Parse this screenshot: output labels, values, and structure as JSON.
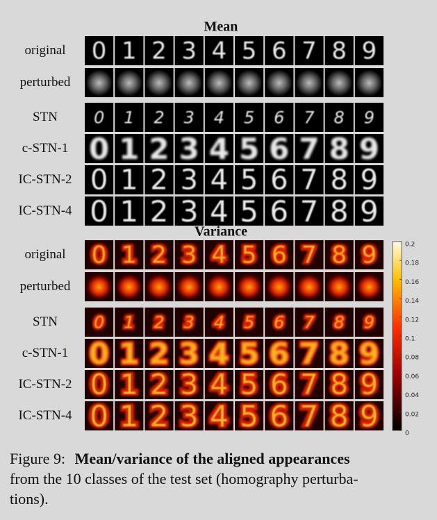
{
  "figure": {
    "mean": {
      "title": "Mean",
      "rows": [
        "original",
        "perturbed",
        "STN",
        "c-STN-1",
        "IC-STN-2",
        "IC-STN-4"
      ]
    },
    "variance": {
      "title": "Variance",
      "rows": [
        "original",
        "perturbed",
        "STN",
        "c-STN-1",
        "IC-STN-2",
        "IC-STN-4"
      ]
    },
    "digits": [
      "0",
      "1",
      "2",
      "3",
      "4",
      "5",
      "6",
      "7",
      "8",
      "9"
    ],
    "colorbar": {
      "lim": [
        0,
        0.2
      ],
      "ticks": [
        0,
        0.02,
        0.04,
        0.06,
        0.08,
        0.1,
        0.12,
        0.14,
        0.16,
        0.18,
        0.2
      ]
    }
  },
  "caption": {
    "label": "Figure 9:",
    "bold": "Mean/variance of the aligned appearances",
    "lines": [
      "from the 10 classes of the test set (homography perturba-",
      "tions)."
    ]
  }
}
